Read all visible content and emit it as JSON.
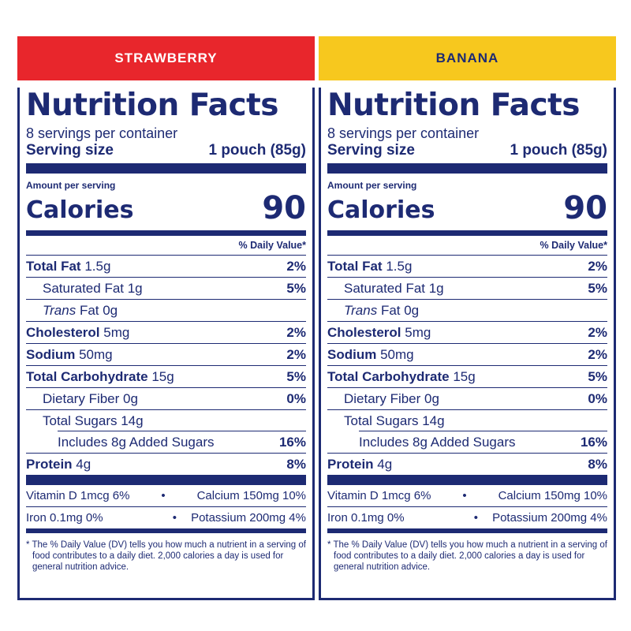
{
  "panels": [
    {
      "flavor": "STRAWBERRY",
      "title": "Nutrition Facts",
      "servings_per_container": "8 servings per container",
      "serving_size_label": "Serving size",
      "serving_size_value": "1 pouch (85g)",
      "amount_per_serving": "Amount per serving",
      "calories_label": "Calories",
      "calories_value": "90",
      "dv_header": "% Daily Value*",
      "total_fat": {
        "label": "Total Fat",
        "amount": "1.5g",
        "dv": "2%"
      },
      "saturated_fat": {
        "label": "Saturated Fat 1g",
        "dv": "5%"
      },
      "trans_fat": {
        "label_italic": "Trans",
        "label_rest": "Fat 0g"
      },
      "cholesterol": {
        "label": "Cholesterol",
        "amount": "5mg",
        "dv": "2%"
      },
      "sodium": {
        "label": "Sodium",
        "amount": "50mg",
        "dv": "2%"
      },
      "total_carb": {
        "label": "Total Carbohydrate",
        "amount": "15g",
        "dv": "5%"
      },
      "dietary_fiber": {
        "label": "Dietary Fiber 0g",
        "dv": "0%"
      },
      "total_sugars": {
        "label": "Total Sugars 14g"
      },
      "added_sugars": {
        "label": "Includes 8g Added Sugars",
        "dv": "16%"
      },
      "protein": {
        "label": "Protein",
        "amount": "4g",
        "dv": "8%"
      },
      "vitamin_d": "Vitamin D 1mcg 6%",
      "calcium": "Calcium 150mg 10%",
      "iron": "Iron 0.1mg 0%",
      "potassium": "Potassium 200mg 4%",
      "bullet": "•",
      "footnote": "* The % Daily Value (DV) tells you how much a nutrient in a serving of food contributes to a daily diet. 2,000 calories a day is used for general nutrition advice."
    },
    {
      "flavor": "BANANA",
      "title": "Nutrition Facts",
      "servings_per_container": "8 servings per container",
      "serving_size_label": "Serving size",
      "serving_size_value": "1 pouch (85g)",
      "amount_per_serving": "Amount per serving",
      "calories_label": "Calories",
      "calories_value": "90",
      "dv_header": "% Daily Value*",
      "total_fat": {
        "label": "Total Fat",
        "amount": "1.5g",
        "dv": "2%"
      },
      "saturated_fat": {
        "label": "Saturated Fat 1g",
        "dv": "5%"
      },
      "trans_fat": {
        "label_italic": "Trans",
        "label_rest": "Fat 0g"
      },
      "cholesterol": {
        "label": "Cholesterol",
        "amount": "5mg",
        "dv": "2%"
      },
      "sodium": {
        "label": "Sodium",
        "amount": "50mg",
        "dv": "2%"
      },
      "total_carb": {
        "label": "Total Carbohydrate",
        "amount": "15g",
        "dv": "5%"
      },
      "dietary_fiber": {
        "label": "Dietary Fiber 0g",
        "dv": "0%"
      },
      "total_sugars": {
        "label": "Total Sugars 14g"
      },
      "added_sugars": {
        "label": "Includes 8g Added Sugars",
        "dv": "16%"
      },
      "protein": {
        "label": "Protein",
        "amount": "4g",
        "dv": "8%"
      },
      "vitamin_d": "Vitamin D 1mcg 6%",
      "calcium": "Calcium 150mg 10%",
      "iron": "Iron 0.1mg 0%",
      "potassium": "Potassium 200mg 4%",
      "bullet": "•",
      "footnote": "* The % Daily Value (DV) tells you how much a nutrient in a serving of food contributes to a daily diet. 2,000 calories a day is used for general nutrition advice."
    }
  ],
  "colors": {
    "navy": "#1d2a73",
    "strawberry": "#e8262c",
    "banana": "#f7c81e"
  }
}
